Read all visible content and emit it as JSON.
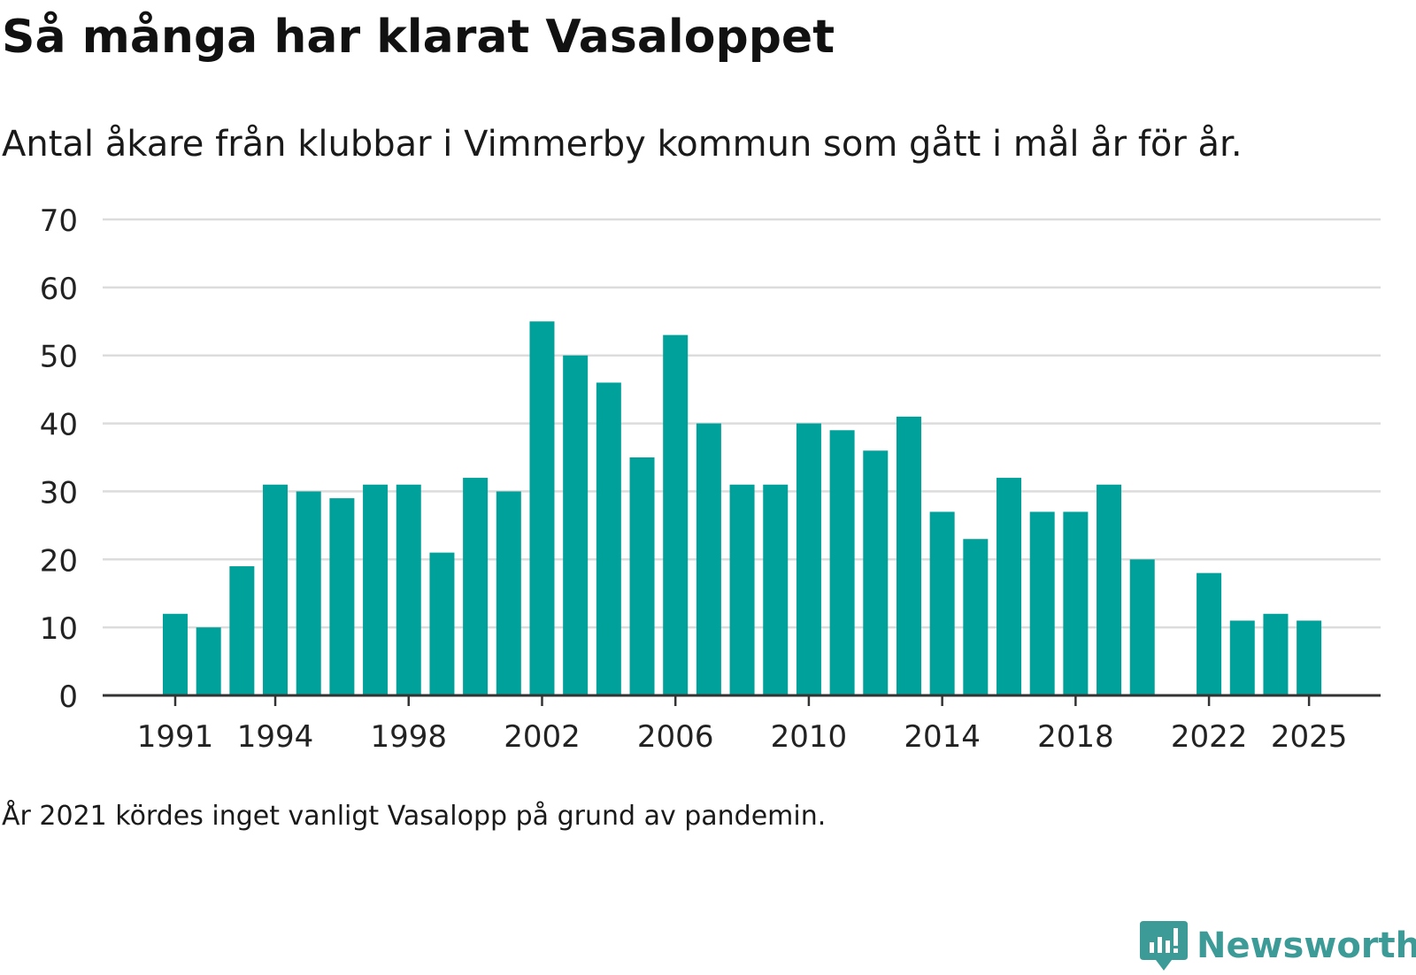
{
  "header": {
    "title": "Så många har klarat Vasaloppet",
    "subtitle": "Antal åkare från klubbar i Vimmerby kommun som gått i mål år för år."
  },
  "footer": {
    "note": "År 2021 kördes inget vanligt Vasalopp på grund av pandemin.",
    "brand": "Newsworthy"
  },
  "colors": {
    "bar": "#00a19a",
    "grid": "#dcdcdc",
    "axis": "#333333",
    "brand": "#3c9b97"
  },
  "chart_data": {
    "type": "bar",
    "title": "Så många har klarat Vasaloppet",
    "subtitle": "Antal åkare från klubbar i Vimmerby kommun som gått i mål år för år.",
    "xlabel": "",
    "ylabel": "",
    "ylim": [
      0,
      70
    ],
    "yticks": [
      0,
      10,
      20,
      30,
      40,
      50,
      60,
      70
    ],
    "xticks": [
      1991,
      1994,
      1998,
      2002,
      2006,
      2010,
      2014,
      2018,
      2022,
      2025
    ],
    "grid": true,
    "categories": [
      1991,
      1992,
      1993,
      1994,
      1995,
      1996,
      1997,
      1998,
      1999,
      2000,
      2001,
      2002,
      2003,
      2004,
      2005,
      2006,
      2007,
      2008,
      2009,
      2010,
      2011,
      2012,
      2013,
      2014,
      2015,
      2016,
      2017,
      2018,
      2019,
      2020,
      2021,
      2022,
      2023,
      2024,
      2025
    ],
    "values": [
      12,
      10,
      19,
      31,
      30,
      29,
      31,
      31,
      21,
      32,
      30,
      55,
      50,
      46,
      35,
      53,
      40,
      31,
      31,
      40,
      39,
      36,
      41,
      27,
      23,
      32,
      27,
      27,
      31,
      20,
      null,
      18,
      11,
      12,
      11
    ]
  }
}
